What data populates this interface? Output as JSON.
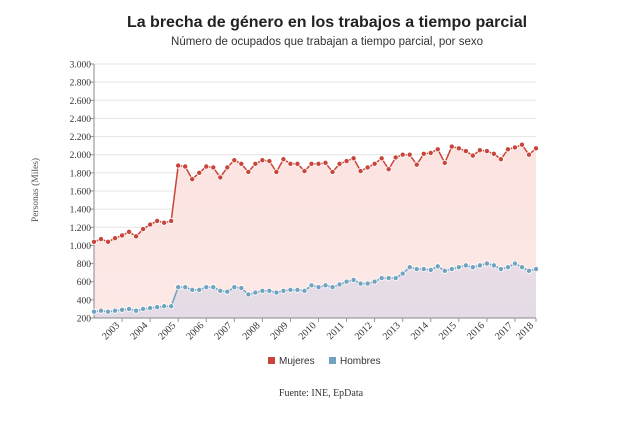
{
  "chart_data": {
    "type": "line",
    "title": "La brecha de género en los trabajos a tiempo parcial",
    "subtitle": "Número de ocupados que trabajan a tiempo parcial, por sexo",
    "ylabel": "Personas (Miles)",
    "xlabel": "",
    "source": "Fuente: INE, EpData",
    "ylim": [
      200,
      3000
    ],
    "yticks": [
      200,
      400,
      600,
      800,
      1000,
      1200,
      1400,
      1600,
      1800,
      2000,
      2200,
      2400,
      2600,
      2800,
      3000
    ],
    "ytick_labels": [
      "200",
      "400",
      "600",
      "800",
      "1.000",
      "1.200",
      "1.400",
      "1.600",
      "1.800",
      "2.000",
      "2.200",
      "2.400",
      "2.600",
      "2.800",
      "3.000"
    ],
    "xticks": [
      "2003",
      "2004",
      "2005",
      "2006",
      "2007",
      "2008",
      "2009",
      "2010",
      "2011",
      "2012",
      "2013",
      "2014",
      "2015",
      "2016",
      "2017",
      "2018"
    ],
    "x_start": "2002 T1",
    "grid": true,
    "legend_position": "bottom",
    "series": [
      {
        "name": "Mujeres",
        "color": "#c9453a",
        "values": [
          1040,
          1070,
          1040,
          1080,
          1110,
          1150,
          1100,
          1180,
          1230,
          1270,
          1250,
          1270,
          1880,
          1870,
          1730,
          1800,
          1870,
          1860,
          1750,
          1860,
          1940,
          1900,
          1810,
          1900,
          1940,
          1930,
          1810,
          1950,
          1900,
          1900,
          1820,
          1900,
          1900,
          1910,
          1810,
          1900,
          1930,
          1960,
          1820,
          1860,
          1900,
          1960,
          1840,
          1970,
          2000,
          2000,
          1890,
          2010,
          2020,
          2060,
          1910,
          2090,
          2070,
          2040,
          1990,
          2050,
          2040,
          2010,
          1950,
          2060,
          2080,
          2110,
          2000,
          2070
        ]
      },
      {
        "name": "Hombres",
        "color": "#6fa3c0",
        "values": [
          270,
          280,
          270,
          280,
          290,
          300,
          280,
          300,
          310,
          320,
          330,
          330,
          540,
          540,
          510,
          510,
          540,
          540,
          500,
          490,
          540,
          530,
          460,
          480,
          500,
          500,
          480,
          500,
          510,
          510,
          500,
          560,
          540,
          560,
          540,
          570,
          600,
          620,
          580,
          580,
          600,
          640,
          640,
          640,
          690,
          760,
          740,
          740,
          730,
          770,
          720,
          740,
          760,
          780,
          760,
          780,
          800,
          780,
          740,
          760,
          800,
          760,
          720,
          740
        ]
      }
    ]
  }
}
